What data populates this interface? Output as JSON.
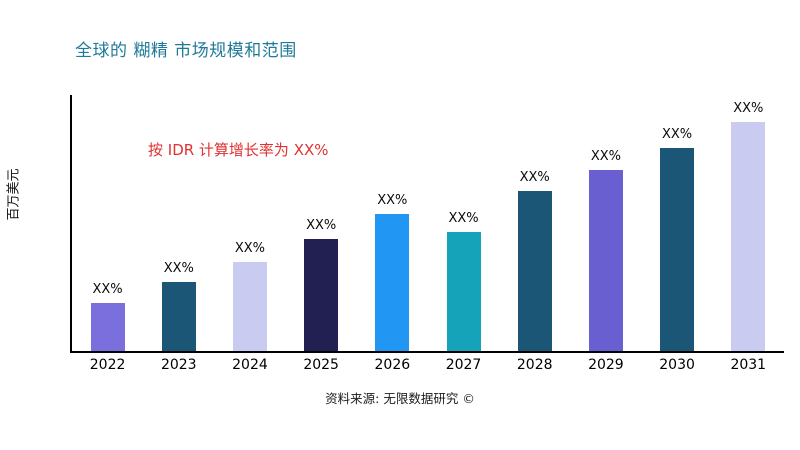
{
  "chart_data": {
    "type": "bar",
    "title": "全球的 糊精 市场规模和范围",
    "ylabel": "百万美元",
    "xlabel": "",
    "annotation": "按 IDR 计算增长率为 XX%",
    "source": "资料来源: 无限数据研究 ©",
    "categories": [
      "2022",
      "2023",
      "2024",
      "2025",
      "2026",
      "2027",
      "2028",
      "2029",
      "2030",
      "2031"
    ],
    "values": [
      21,
      30,
      39,
      49,
      60,
      52,
      70,
      79,
      89,
      100
    ],
    "bar_labels": [
      "XX%",
      "XX%",
      "XX%",
      "XX%",
      "XX%",
      "XX%",
      "XX%",
      "XX%",
      "XX%",
      "XX%"
    ],
    "bar_colors": [
      "#7B6FDE",
      "#1C5677",
      "#C9CCF0",
      "#221F52",
      "#2196F3",
      "#14A3B8",
      "#1C5677",
      "#6A5FD0",
      "#1C5677",
      "#C9CCF0"
    ],
    "ylim": [
      0,
      112
    ],
    "grid": false,
    "legend": false,
    "accent_color": "#1F7A99",
    "annotation_color": "#E03131",
    "axis_color": "#000000"
  }
}
